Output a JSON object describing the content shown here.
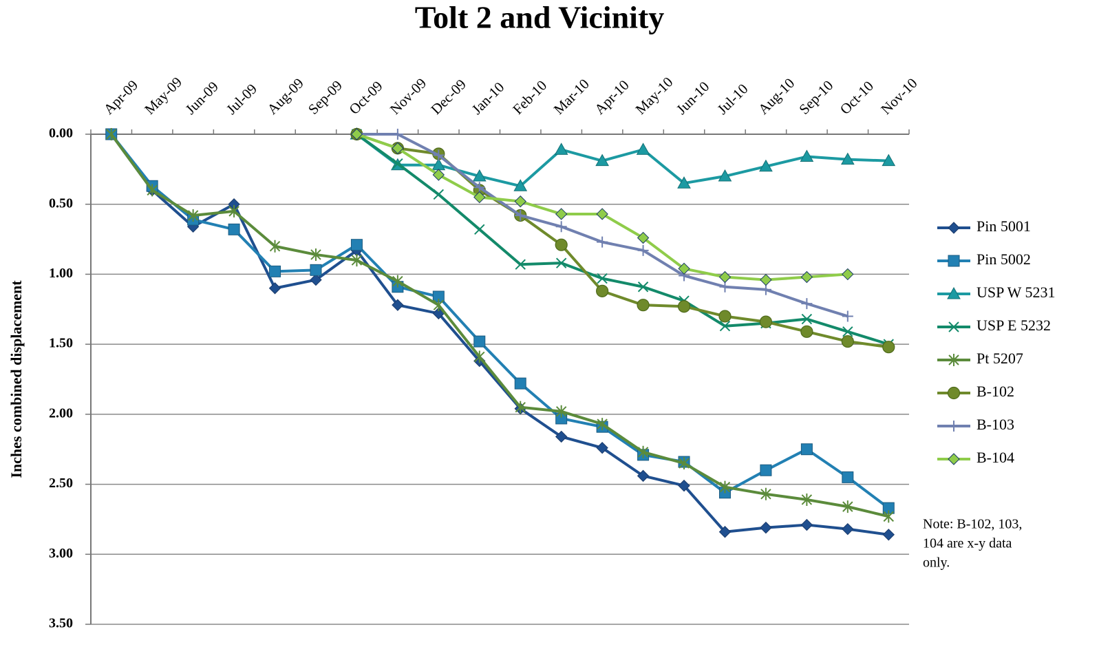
{
  "chart_data": {
    "type": "line",
    "title": "Tolt 2 and Vicinity",
    "y_label": "Inches combined displacement",
    "categories": [
      "Apr-09",
      "May-09",
      "Jun-09",
      "Jul-09",
      "Aug-09",
      "Sep-09",
      "Oct-09",
      "Nov-09",
      "Dec-09",
      "Jan-10",
      "Feb-10",
      "Mar-10",
      "Apr-10",
      "May-10",
      "Jun-10",
      "Jul-10",
      "Aug-10",
      "Sep-10",
      "Oct-10",
      "Nov-10"
    ],
    "series": [
      {
        "name": "Pin 5001",
        "color": "#1f4f8f",
        "marker": "diamond",
        "values": [
          0,
          0.4,
          0.66,
          0.5,
          1.1,
          1.04,
          0.83,
          1.22,
          1.28,
          1.62,
          1.96,
          2.16,
          2.24,
          2.44,
          2.51,
          2.84,
          2.81,
          2.79,
          2.82,
          2.86
        ]
      },
      {
        "name": "Pin 5002",
        "color": "#2280b3",
        "marker": "square",
        "values": [
          0,
          0.37,
          0.61,
          0.68,
          0.98,
          0.97,
          0.79,
          1.09,
          1.16,
          1.48,
          1.78,
          2.03,
          2.09,
          2.29,
          2.34,
          2.56,
          2.4,
          2.25,
          2.45,
          2.67
        ]
      },
      {
        "name": "USP W 5231",
        "color": "#1c9aa2",
        "marker": "triangle",
        "values": [
          null,
          null,
          null,
          null,
          null,
          null,
          0,
          0.22,
          0.22,
          0.3,
          0.37,
          0.11,
          0.19,
          0.11,
          0.35,
          0.3,
          0.23,
          0.16,
          0.18,
          0.19
        ]
      },
      {
        "name": "USP E 5232",
        "color": "#138a6a",
        "marker": "x",
        "values": [
          null,
          null,
          null,
          null,
          null,
          null,
          0,
          0.21,
          0.43,
          0.68,
          0.93,
          0.92,
          1.03,
          1.09,
          1.19,
          1.37,
          1.35,
          1.32,
          1.41,
          1.5
        ]
      },
      {
        "name": "Pt 5207",
        "color": "#5b8b3b",
        "marker": "star",
        "values": [
          0,
          0.4,
          0.58,
          0.55,
          0.8,
          0.86,
          0.9,
          1.05,
          1.22,
          1.59,
          1.95,
          1.98,
          2.07,
          2.27,
          2.35,
          2.52,
          2.57,
          2.61,
          2.66,
          2.73
        ]
      },
      {
        "name": "B-102",
        "color": "#6f8a2b",
        "marker": "circle",
        "values": [
          null,
          null,
          null,
          null,
          null,
          null,
          0,
          0.1,
          0.14,
          0.4,
          0.58,
          0.79,
          1.12,
          1.22,
          1.23,
          1.3,
          1.34,
          1.41,
          1.48,
          1.52
        ]
      },
      {
        "name": "B-103",
        "color": "#7080b0",
        "marker": "plus",
        "values": [
          null,
          null,
          null,
          null,
          null,
          null,
          0,
          0,
          0.15,
          0.38,
          0.58,
          0.66,
          0.77,
          0.83,
          1.01,
          1.09,
          1.11,
          1.21,
          1.3,
          null
        ]
      },
      {
        "name": "B-104",
        "color": "#8fcc4a",
        "marker": "diamond",
        "values": [
          null,
          null,
          null,
          null,
          null,
          null,
          0,
          0.1,
          0.29,
          0.45,
          0.48,
          0.57,
          0.57,
          0.74,
          0.96,
          1.02,
          1.04,
          1.02,
          1.0,
          null
        ]
      }
    ],
    "ylim": [
      0,
      3.5
    ],
    "y_inverted": true,
    "yticks": [
      {
        "value": 0,
        "label": "0.00"
      },
      {
        "value": 0.5,
        "label": "0.50"
      },
      {
        "value": 1,
        "label": "1.00"
      },
      {
        "value": 1.5,
        "label": "1.50"
      },
      {
        "value": 2,
        "label": "2.00"
      },
      {
        "value": 2.5,
        "label": "2.50"
      },
      {
        "value": 3,
        "label": "3.00"
      },
      {
        "value": 3.5,
        "label": "3.50"
      }
    ],
    "grid": true,
    "legend": "right",
    "annotation": [
      "Note: B-102, 103,",
      "104 are x-y data",
      "only."
    ]
  }
}
